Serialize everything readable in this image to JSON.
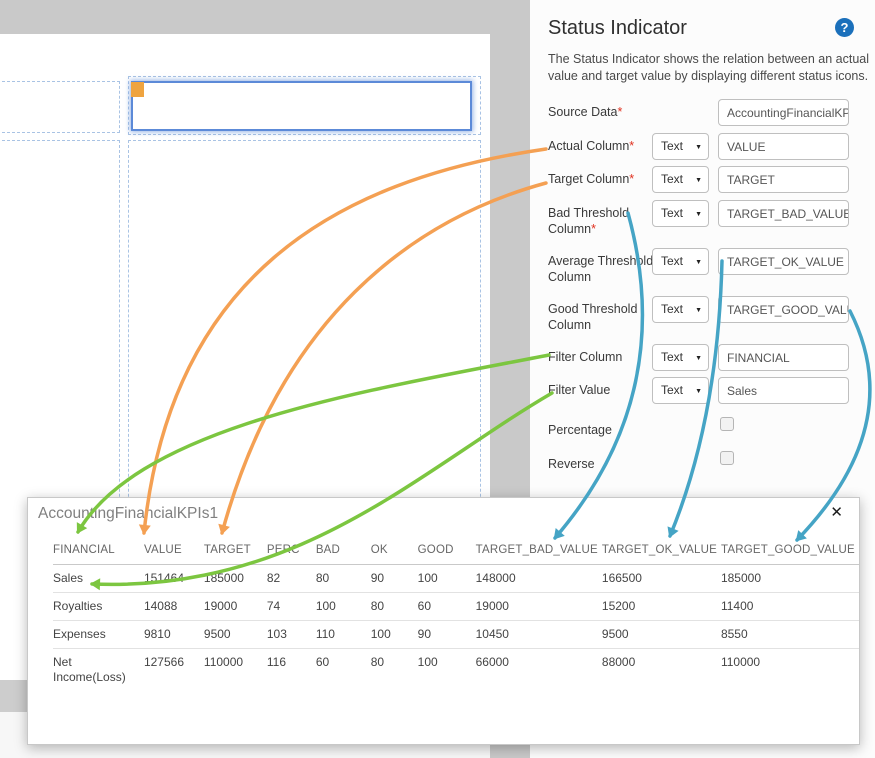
{
  "panel": {
    "title": "Status Indicator",
    "help_icon_glyph": "?",
    "description": "The Status Indicator shows the relation between an actual value and target value by displaying different status icons.",
    "type_dropdown_caret": "caret-down-icon",
    "fields": [
      {
        "label": "Source Data",
        "required": true,
        "type": null,
        "value": "AccountingFinancialKP"
      },
      {
        "label": "Actual Column",
        "required": true,
        "type": "Text",
        "value": "VALUE"
      },
      {
        "label": "Target Column",
        "required": true,
        "type": "Text",
        "value": "TARGET"
      },
      {
        "label": "Bad Threshold Column",
        "required": true,
        "type": "Text",
        "value": "TARGET_BAD_VALUE"
      },
      {
        "label": "Average Threshold Column",
        "required": false,
        "type": "Text",
        "value": "TARGET_OK_VALUE"
      },
      {
        "label": "Good Threshold Column",
        "required": false,
        "type": "Text",
        "value": "TARGET_GOOD_VALUE"
      },
      {
        "label": "Filter Column",
        "required": false,
        "type": "Text",
        "value": "FINANCIAL"
      },
      {
        "label": "Filter Value",
        "required": false,
        "type": "Text",
        "value": "Sales"
      },
      {
        "label": "Percentage",
        "required": false,
        "checked": false
      },
      {
        "label": "Reverse",
        "required": false,
        "checked": false
      }
    ]
  },
  "data_popup": {
    "title": "AccountingFinancialKPIs1",
    "close_glyph": "✕",
    "columns": [
      "FINANCIAL",
      "VALUE",
      "TARGET",
      "PERC",
      "BAD",
      "OK",
      "GOOD",
      "TARGET_BAD_VALUE",
      "TARGET_OK_VALUE",
      "TARGET_GOOD_VALUE"
    ],
    "rows": [
      [
        "Sales",
        "151464",
        "185000",
        "82",
        "80",
        "90",
        "100",
        "148000",
        "166500",
        "185000"
      ],
      [
        "Royalties",
        "14088",
        "19000",
        "74",
        "100",
        "80",
        "60",
        "19000",
        "15200",
        "11400"
      ],
      [
        "Expenses",
        "9810",
        "9500",
        "103",
        "110",
        "100",
        "90",
        "10450",
        "9500",
        "8550"
      ],
      [
        "Net Income(Loss)",
        "127566",
        "110000",
        "116",
        "60",
        "80",
        "100",
        "66000",
        "88000",
        "110000"
      ]
    ]
  },
  "colors": {
    "arrow_orange": "#F4A053",
    "arrow_green": "#7CC640",
    "arrow_blue": "#45A4C5",
    "selection_blue": "#5C8AD8",
    "handle_orange": "#EFA440",
    "help_blue": "#1B70BB",
    "required_red": "#E0301E"
  }
}
